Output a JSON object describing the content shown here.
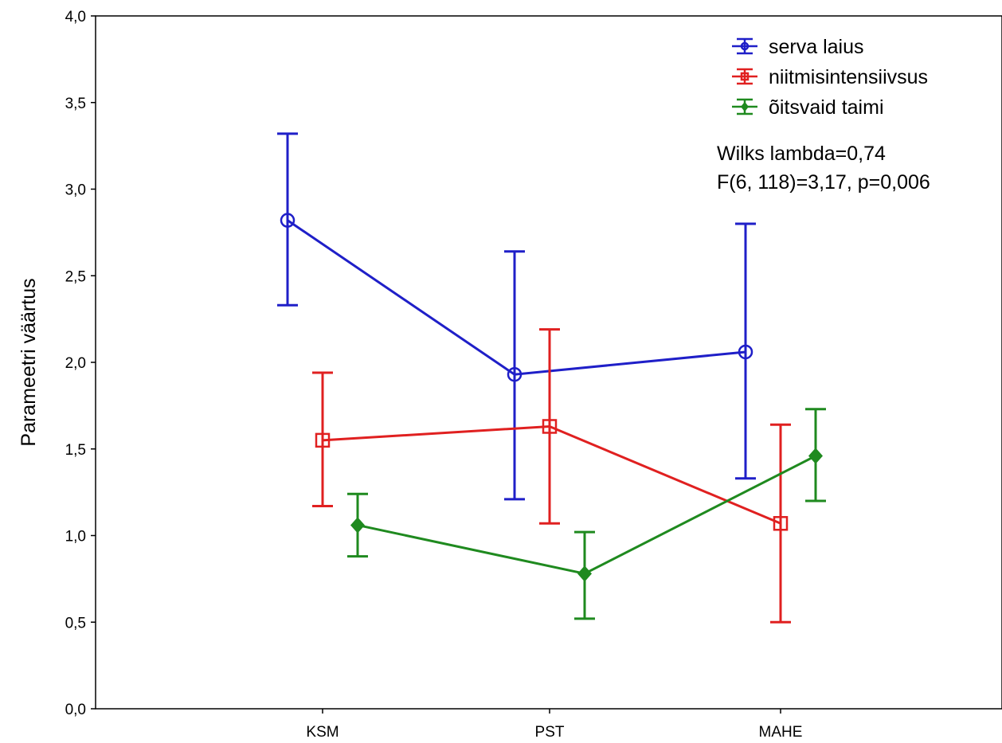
{
  "chart_data": {
    "type": "line",
    "title": "",
    "xlabel": "",
    "ylabel": "Parameetri väärtus",
    "ylim": [
      0,
      4
    ],
    "yticks": [
      "0,0",
      "0,5",
      "1,0",
      "1,5",
      "2,0",
      "2,5",
      "3,0",
      "3,5",
      "4,0"
    ],
    "categories": [
      "KSM",
      "PST",
      "MAHE"
    ],
    "grid": false,
    "legend_position": "top-right",
    "series": [
      {
        "name": "serva laius",
        "color": "#1f1fc8",
        "marker": "circle",
        "values": [
          2.82,
          1.93,
          2.06
        ],
        "lower": [
          2.33,
          1.21,
          1.33
        ],
        "upper": [
          3.32,
          2.64,
          2.8
        ]
      },
      {
        "name": "niitmisintensiivsus",
        "color": "#e02020",
        "marker": "square",
        "values": [
          1.55,
          1.63,
          1.07
        ],
        "lower": [
          1.17,
          1.07,
          0.5
        ],
        "upper": [
          1.94,
          2.19,
          1.64
        ]
      },
      {
        "name": "õitsvaid taimi",
        "color": "#1f8a1f",
        "marker": "diamond",
        "values": [
          1.06,
          0.78,
          1.46
        ],
        "lower": [
          0.88,
          0.52,
          1.2
        ],
        "upper": [
          1.24,
          1.02,
          1.73
        ]
      }
    ],
    "annotations": [
      "Wilks lambda=0,74",
      "F(6, 118)=3,17, p=0,006"
    ]
  }
}
